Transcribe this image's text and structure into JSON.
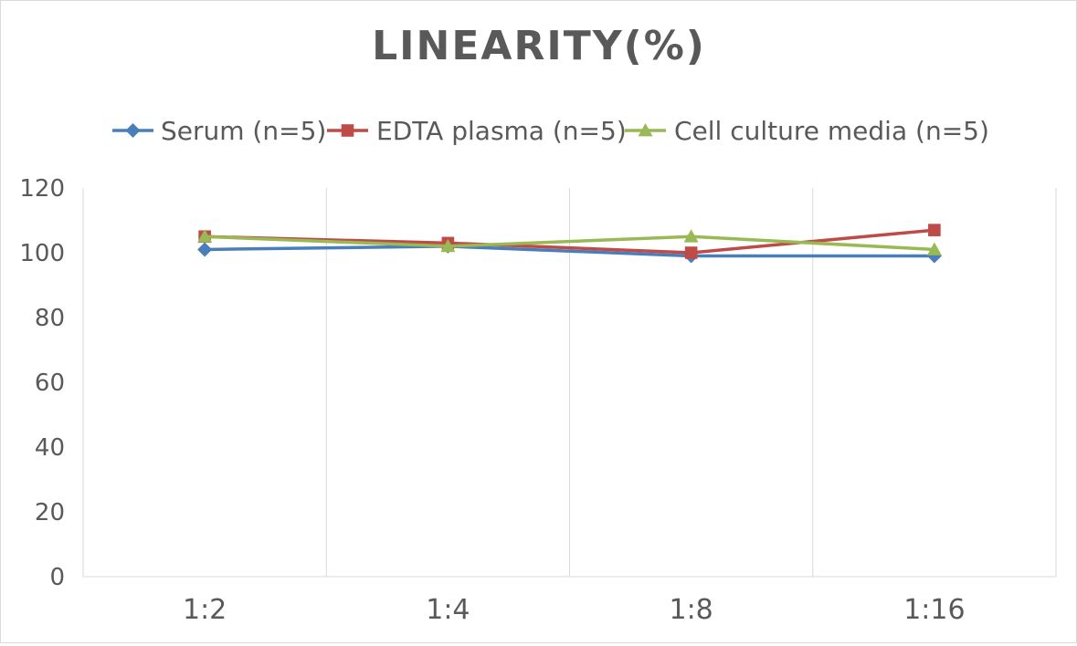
{
  "chart_data": {
    "type": "line",
    "title": "LINEARITY(%)",
    "xlabel": "",
    "ylabel": "",
    "categories": [
      "1:2",
      "1:4",
      "1:8",
      "1:16"
    ],
    "ylim": [
      0,
      120
    ],
    "yticks": [
      0,
      20,
      40,
      60,
      80,
      100,
      120
    ],
    "grid": "vertical",
    "legend_position": "top",
    "series": [
      {
        "name": "Serum (n=5)",
        "values": [
          101,
          102,
          99,
          99
        ],
        "color": "#4a7ebb",
        "marker": "diamond"
      },
      {
        "name": "EDTA plasma (n=5)",
        "values": [
          105,
          103,
          100,
          107
        ],
        "color": "#be4b48",
        "marker": "square"
      },
      {
        "name": "Cell culture media (n=5)",
        "values": [
          105,
          102,
          105,
          101
        ],
        "color": "#98b954",
        "marker": "triangle"
      }
    ],
    "colors": {
      "title": "#595959",
      "text": "#595959",
      "grid": "#d9d9d9",
      "axis": "#d9d9d9"
    }
  }
}
